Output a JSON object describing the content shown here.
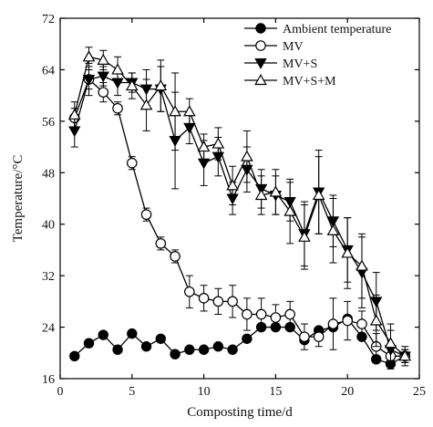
{
  "chart_data": {
    "type": "line",
    "xlabel": "Composting time/d",
    "ylabel": "Temperature/°C",
    "xlim": [
      0,
      25
    ],
    "ylim": [
      16,
      72
    ],
    "xticks": [
      "0",
      "5",
      "10",
      "15",
      "20",
      "25"
    ],
    "yticks": [
      "16",
      "24",
      "32",
      "40",
      "48",
      "56",
      "64",
      "72"
    ],
    "grid": false,
    "legend_position": "top-right",
    "series": [
      {
        "name": "Ambient temperature",
        "marker": "filled-circle",
        "color": "#000000",
        "x": [
          1,
          2,
          3,
          4,
          5,
          6,
          7,
          8,
          9,
          10,
          11,
          12,
          13,
          14,
          15,
          16,
          17,
          18,
          19,
          20,
          21,
          22,
          23,
          24
        ],
        "y": [
          19.5,
          21.5,
          22.8,
          20.5,
          23,
          21,
          22.2,
          19.8,
          20.5,
          20.5,
          21,
          20.5,
          22.2,
          24,
          24,
          24,
          22,
          23.5,
          24,
          25.3,
          22.5,
          19,
          18.3,
          19.5
        ],
        "err": [
          0,
          0,
          0,
          0,
          0,
          0,
          0,
          0,
          0,
          0,
          0,
          0,
          0,
          0,
          0,
          0,
          0,
          0,
          0,
          0,
          0,
          0,
          0,
          0
        ]
      },
      {
        "name": "MV",
        "marker": "open-circle",
        "color": "#000000",
        "x": [
          1,
          2,
          3,
          4,
          5,
          6,
          7,
          8,
          9,
          10,
          11,
          12,
          13,
          14,
          15,
          16,
          17,
          18,
          19,
          20,
          21,
          22,
          23,
          24
        ],
        "y": [
          56.5,
          62.5,
          60.5,
          58,
          49.5,
          41.5,
          37,
          35,
          29.5,
          28.5,
          28,
          28,
          26,
          26,
          25.5,
          26,
          22.5,
          22.5,
          24.5,
          25,
          24.5,
          21,
          19.5,
          19.5
        ],
        "err": [
          1.5,
          1.5,
          1.5,
          1,
          1,
          1,
          1,
          1,
          2.5,
          2,
          2,
          2.5,
          2.5,
          2.5,
          2,
          2,
          2,
          1.5,
          4,
          3,
          2,
          2,
          1.5,
          1.5
        ]
      },
      {
        "name": "MV+S",
        "marker": "filled-triangle-down",
        "color": "#000000",
        "x": [
          1,
          2,
          3,
          4,
          5,
          6,
          7,
          8,
          9,
          10,
          11,
          12,
          13,
          14,
          15,
          16,
          17,
          18,
          19,
          20,
          21,
          22,
          23,
          24
        ],
        "y": [
          54.5,
          62.5,
          63,
          62,
          62,
          61,
          61,
          53,
          55,
          49.5,
          50.5,
          44,
          48.5,
          45.5,
          44.5,
          43.5,
          38.5,
          45,
          40.5,
          36,
          32.5,
          28,
          20.5,
          19.5
        ],
        "err": [
          2.5,
          2.5,
          1.5,
          2,
          1.5,
          3,
          3.5,
          7.5,
          2.5,
          3.5,
          3,
          2.5,
          3.5,
          3,
          3,
          3,
          5,
          6.5,
          4,
          5,
          5.5,
          4.5,
          3,
          1
        ]
      },
      {
        "name": "MV+S+M",
        "marker": "open-triangle-up",
        "color": "#000000",
        "x": [
          1,
          2,
          3,
          4,
          5,
          6,
          7,
          8,
          9,
          10,
          11,
          12,
          13,
          14,
          15,
          16,
          17,
          18,
          19,
          20,
          21,
          22,
          23,
          24
        ],
        "y": [
          57,
          66,
          65.5,
          64,
          61.5,
          58.5,
          61.5,
          57.5,
          57.5,
          52,
          52.5,
          46,
          50.5,
          44.5,
          45,
          42,
          38,
          44.5,
          39,
          35.5,
          33.5,
          25,
          21.5,
          19.5
        ],
        "err": [
          2,
          1.5,
          1.5,
          2,
          2,
          4,
          4,
          6,
          2,
          2,
          2.5,
          3,
          4,
          3,
          3.5,
          5,
          5,
          6,
          5,
          5.5,
          5,
          4,
          3,
          1
        ]
      }
    ]
  }
}
